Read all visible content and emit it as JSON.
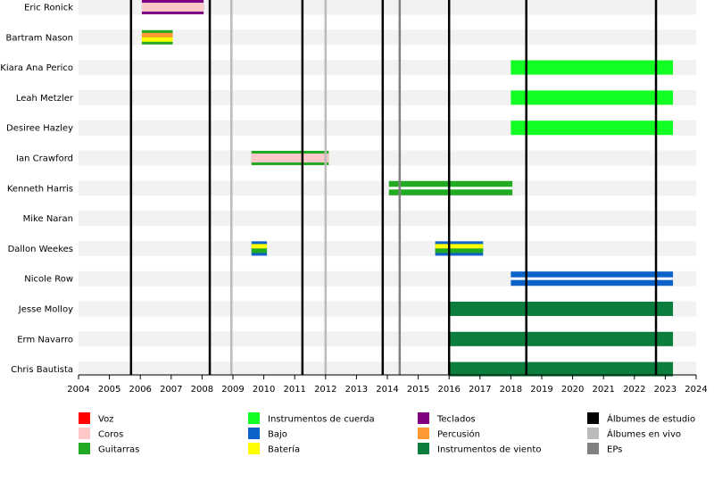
{
  "chart_data": {
    "type": "timeline",
    "title": "",
    "xlim": [
      2004,
      2024
    ],
    "x_ticks": [
      "2004",
      "2005",
      "2006",
      "2007",
      "2008",
      "2009",
      "2010",
      "2011",
      "2012",
      "2013",
      "2014",
      "2015",
      "2016",
      "2017",
      "2018",
      "2019",
      "2020",
      "2021",
      "2022",
      "2023",
      "2024"
    ],
    "members": [
      {
        "name": "Eric Ronick",
        "spans": [
          {
            "start": 2006.05,
            "end": 2008.05,
            "roles": [
              "Teclados",
              "Coros"
            ]
          }
        ]
      },
      {
        "name": "Bartram Nason",
        "spans": [
          {
            "start": 2006.05,
            "end": 2007.05,
            "roles": [
              "Guitarras",
              "Percusión",
              "Batería"
            ]
          }
        ]
      },
      {
        "name": "Kiara Ana Perico",
        "spans": [
          {
            "start": 2018.0,
            "end": 2023.25,
            "roles": [
              "Instrumentos de cuerda"
            ]
          }
        ]
      },
      {
        "name": "Leah Metzler",
        "spans": [
          {
            "start": 2018.0,
            "end": 2023.25,
            "roles": [
              "Instrumentos de cuerda"
            ]
          }
        ]
      },
      {
        "name": "Desiree Hazley",
        "spans": [
          {
            "start": 2018.0,
            "end": 2023.25,
            "roles": [
              "Instrumentos de cuerda"
            ]
          }
        ]
      },
      {
        "name": "Ian Crawford",
        "spans": [
          {
            "start": 2009.6,
            "end": 2012.1,
            "roles": [
              "Guitarras",
              "Coros"
            ]
          }
        ]
      },
      {
        "name": "Kenneth Harris",
        "spans": [
          {
            "start": 2014.05,
            "end": 2018.05,
            "roles": [
              "Guitarras"
            ]
          }
        ]
      },
      {
        "name": "Mike Naran",
        "spans": []
      },
      {
        "name": "Dallon Weekes",
        "spans": [
          {
            "start": 2009.6,
            "end": 2010.1,
            "roles": [
              "Bajo",
              "Batería",
              "Guitarras"
            ]
          },
          {
            "start": 2015.55,
            "end": 2017.1,
            "roles": [
              "Bajo",
              "Batería",
              "Guitarras"
            ]
          }
        ]
      },
      {
        "name": "Nicole Row",
        "spans": [
          {
            "start": 2018.0,
            "end": 2023.25,
            "roles": [
              "Bajo"
            ]
          }
        ]
      },
      {
        "name": "Jesse Molloy",
        "spans": [
          {
            "start": 2016.0,
            "end": 2023.25,
            "roles": [
              "Instrumentos de viento"
            ]
          }
        ]
      },
      {
        "name": "Erm Navarro",
        "spans": [
          {
            "start": 2016.0,
            "end": 2023.25,
            "roles": [
              "Instrumentos de viento"
            ]
          }
        ]
      },
      {
        "name": "Chris Bautista",
        "spans": [
          {
            "start": 2016.0,
            "end": 2023.25,
            "roles": [
              "Instrumentos de viento"
            ]
          }
        ]
      }
    ],
    "release_lines": [
      {
        "year": 2005.7,
        "type": "Álbumes de estudio"
      },
      {
        "year": 2008.25,
        "type": "Álbumes de estudio"
      },
      {
        "year": 2011.25,
        "type": "Álbumes de estudio"
      },
      {
        "year": 2013.85,
        "type": "Álbumes de estudio"
      },
      {
        "year": 2016.0,
        "type": "Álbumes de estudio"
      },
      {
        "year": 2018.5,
        "type": "Álbumes de estudio"
      },
      {
        "year": 2022.7,
        "type": "Álbumes de estudio"
      },
      {
        "year": 2008.95,
        "type": "Álbumes en vivo"
      },
      {
        "year": 2012.0,
        "type": "Álbumes en vivo"
      },
      {
        "year": 2014.4,
        "type": "EPs"
      }
    ],
    "legend": [
      {
        "label": "Voz",
        "color": "#ff0000"
      },
      {
        "label": "Coros",
        "color": "#ffc8c8"
      },
      {
        "label": "Guitarras",
        "color": "#22aa22"
      },
      {
        "label": "Instrumentos de cuerda",
        "color": "#11ff22"
      },
      {
        "label": "Bajo",
        "color": "#0d62c9"
      },
      {
        "label": "Batería",
        "color": "#ffff00"
      },
      {
        "label": "Teclados",
        "color": "#800080"
      },
      {
        "label": "Percusión",
        "color": "#ff9a33"
      },
      {
        "label": "Instrumentos de viento",
        "color": "#0b7d3c"
      },
      {
        "label": "Álbumes de estudio",
        "color": "#000000"
      },
      {
        "label": "Álbumes en vivo",
        "color": "#bbbbbb"
      },
      {
        "label": "EPs",
        "color": "#808080"
      }
    ]
  }
}
